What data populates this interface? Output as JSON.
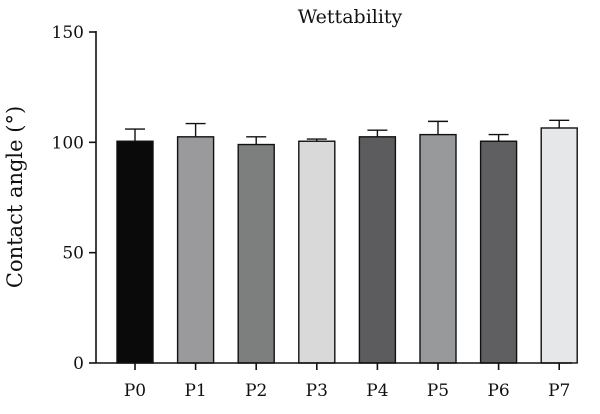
{
  "chart_data": {
    "type": "bar",
    "title": "Wettability",
    "xlabel": "",
    "ylabel": "Contact angle (°)",
    "ylim": [
      0,
      150
    ],
    "yticks": [
      0,
      50,
      100,
      150
    ],
    "grid": false,
    "categories": [
      "P0",
      "P1",
      "P2",
      "P3",
      "P4",
      "P5",
      "P6",
      "P7"
    ],
    "values": [
      100.5,
      102.5,
      99,
      100.5,
      102.5,
      103.5,
      100.5,
      106.5
    ],
    "errors": [
      5.5,
      6,
      3.5,
      1,
      3,
      6,
      3,
      3.5
    ],
    "colors": [
      "#0a0a0a",
      "#9a9a9c",
      "#7d7f7e",
      "#d9d9d9",
      "#5c5c5e",
      "#98999b",
      "#5f5f61",
      "#e6e7e9"
    ]
  }
}
